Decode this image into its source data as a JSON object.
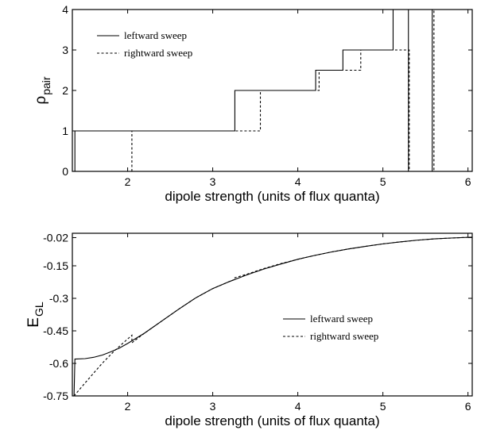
{
  "chart_data": [
    {
      "type": "line",
      "xlabel": "dipole strength (units of flux quanta)",
      "ylabel_main": "ρ",
      "ylabel_sub": "pair",
      "xlim": [
        1.35,
        6.05
      ],
      "ylim": [
        0,
        4
      ],
      "xticks": [
        "2",
        "3",
        "4",
        "5",
        "6"
      ],
      "xtick_values": [
        2,
        3,
        4,
        5,
        6
      ],
      "yticks": [
        "0",
        "1",
        "2",
        "3",
        "4"
      ],
      "ytick_values": [
        0,
        1,
        2,
        3,
        4
      ],
      "legend_position": "top-left",
      "series": [
        {
          "name": "leftward sweep",
          "style": "solid",
          "points": [
            [
              1.38,
              0
            ],
            [
              1.38,
              1
            ],
            [
              3.26,
              1
            ],
            [
              3.26,
              2
            ],
            [
              4.21,
              2
            ],
            [
              4.21,
              2.5
            ],
            [
              4.53,
              2.5
            ],
            [
              4.53,
              3
            ],
            [
              5.12,
              3
            ],
            [
              5.12,
              4
            ],
            [
              5.3,
              4
            ],
            [
              5.3,
              0
            ],
            [
              5.58,
              0
            ],
            [
              5.58,
              4
            ],
            [
              6.05,
              4
            ]
          ]
        },
        {
          "name": "rightward sweep",
          "style": "dashed",
          "points": [
            [
              2.05,
              0
            ],
            [
              2.05,
              1
            ],
            [
              3.56,
              1
            ],
            [
              3.56,
              2
            ],
            [
              4.25,
              2
            ],
            [
              4.25,
              2.5
            ],
            [
              4.74,
              2.5
            ],
            [
              4.74,
              3
            ],
            [
              5.31,
              3
            ],
            [
              5.31,
              0
            ],
            [
              5.6,
              0
            ],
            [
              5.6,
              4
            ],
            [
              6.05,
              4
            ]
          ]
        }
      ]
    },
    {
      "type": "line",
      "xlabel": "dipole strength (units of flux quanta)",
      "ylabel_main": "E",
      "ylabel_sub": "GL",
      "xlim": [
        1.35,
        6.05
      ],
      "ylim": [
        -0.75,
        0
      ],
      "xticks": [
        "2",
        "3",
        "4",
        "5",
        "6"
      ],
      "xtick_values": [
        2,
        3,
        4,
        5,
        6
      ],
      "yticks": [
        "-0.75",
        "-0.6",
        "-0.45",
        "-0.3",
        "-0.15",
        "-0.02"
      ],
      "ytick_values": [
        -0.75,
        -0.6,
        -0.45,
        -0.3,
        -0.15,
        -0.02
      ],
      "legend_position": "center-right",
      "series": [
        {
          "name": "leftward sweep",
          "style": "solid",
          "points": [
            [
              1.37,
              -0.75
            ],
            [
              1.38,
              -0.58
            ],
            [
              1.5,
              -0.578
            ],
            [
              1.6,
              -0.572
            ],
            [
              1.7,
              -0.562
            ],
            [
              1.8,
              -0.547
            ],
            [
              1.9,
              -0.53
            ],
            [
              2.0,
              -0.508
            ],
            [
              2.2,
              -0.46
            ],
            [
              2.4,
              -0.405
            ],
            [
              2.6,
              -0.35
            ],
            [
              2.8,
              -0.298
            ],
            [
              3.0,
              -0.255
            ],
            [
              3.2,
              -0.222
            ],
            [
              3.4,
              -0.192
            ],
            [
              3.6,
              -0.165
            ],
            [
              3.8,
              -0.142
            ],
            [
              4.0,
              -0.12
            ],
            [
              4.2,
              -0.102
            ],
            [
              4.4,
              -0.086
            ],
            [
              4.6,
              -0.072
            ],
            [
              4.8,
              -0.06
            ],
            [
              5.0,
              -0.049
            ],
            [
              5.2,
              -0.04
            ],
            [
              5.4,
              -0.032
            ],
            [
              5.6,
              -0.026
            ],
            [
              5.8,
              -0.022
            ],
            [
              6.05,
              -0.018
            ]
          ]
        },
        {
          "name": "rightward sweep",
          "style": "dashed",
          "points": [
            [
              1.37,
              -0.75
            ],
            [
              1.5,
              -0.69
            ],
            [
              1.7,
              -0.6
            ],
            [
              1.85,
              -0.54
            ],
            [
              2.05,
              -0.47
            ],
            [
              2.05,
              -0.505
            ],
            [
              2.2,
              -0.46
            ],
            [
              2.4,
              -0.405
            ],
            [
              2.6,
              -0.35
            ],
            [
              2.8,
              -0.298
            ],
            [
              3.0,
              -0.255
            ],
            [
              3.2,
              -0.222
            ],
            [
              3.26,
              -0.213
            ],
            [
              3.26,
              -0.205
            ],
            [
              3.4,
              -0.189
            ],
            [
              3.6,
              -0.163
            ],
            [
              3.8,
              -0.14
            ],
            [
              4.0,
              -0.12
            ],
            [
              4.2,
              -0.102
            ],
            [
              4.4,
              -0.086
            ],
            [
              4.6,
              -0.072
            ],
            [
              4.8,
              -0.06
            ],
            [
              5.0,
              -0.049
            ],
            [
              5.2,
              -0.04
            ],
            [
              5.4,
              -0.032
            ],
            [
              5.6,
              -0.026
            ],
            [
              5.8,
              -0.022
            ],
            [
              6.05,
              -0.018
            ]
          ]
        }
      ]
    }
  ]
}
